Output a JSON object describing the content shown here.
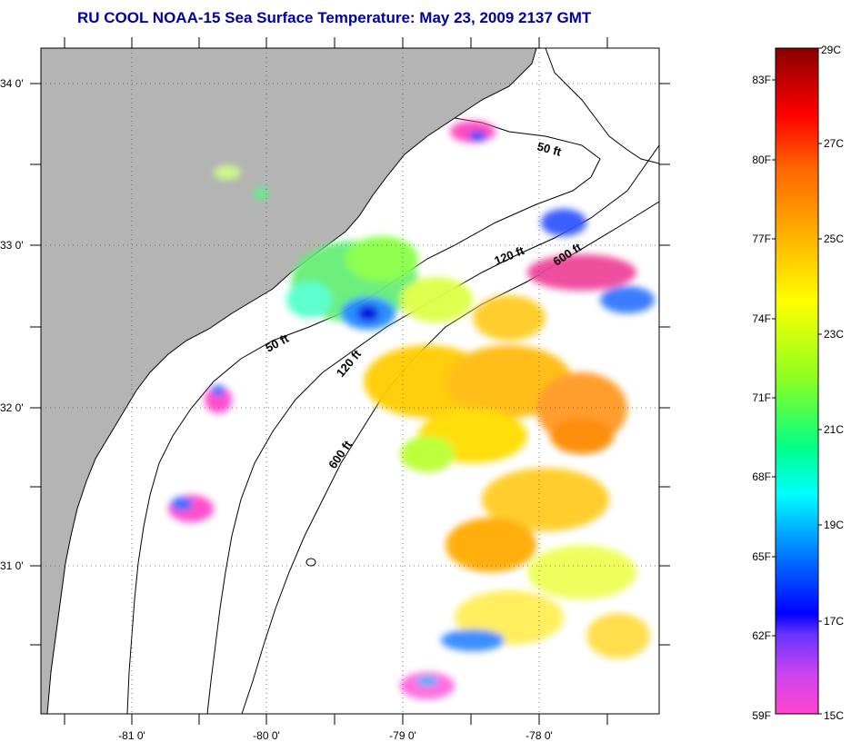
{
  "title": "RU COOL  NOAA-15  Sea Surface Temperature:  May 23, 2009 2137 GMT",
  "map": {
    "lat_labels": [
      "34 0'",
      "33 0'",
      "32 0'",
      "31 0'"
    ],
    "lon_labels": [
      "-81 0'",
      "-80 0'",
      "-79 0'",
      "-78 0'"
    ],
    "isobath_labels": [
      "50 ft",
      "120 ft",
      "600 ft",
      "50 ft",
      "120 ft",
      "600 ft"
    ],
    "land_color": "#b4b4b4",
    "water_color": "#ffffff"
  },
  "colorbar": {
    "fahrenheit_labels": [
      "83F",
      "80F",
      "77F",
      "74F",
      "71F",
      "68F",
      "65F",
      "62F",
      "59F"
    ],
    "celsius_labels": [
      "29C",
      "27C",
      "25C",
      "23C",
      "21C",
      "19C",
      "17C",
      "15C"
    ],
    "colors": [
      "#ff44cc",
      "#aa44ff",
      "#0000ff",
      "#00aaff",
      "#00ffff",
      "#00ff99",
      "#88ff00",
      "#ffff00",
      "#ffcc00",
      "#ff8800",
      "#ff3300",
      "#ff0000",
      "#880000"
    ]
  }
}
